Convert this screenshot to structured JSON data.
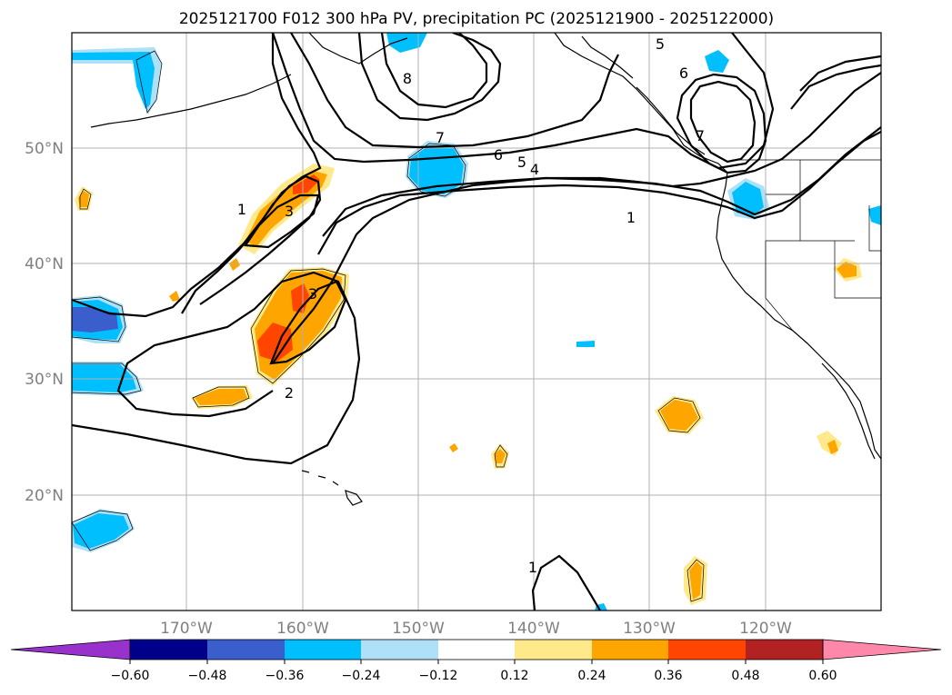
{
  "figure": {
    "title": "2025121700 F012 300 hPa PV, precipitation PC (2025121900 - 2025122000)"
  },
  "map": {
    "lat_labels": [
      "50°N",
      "40°N",
      "30°N",
      "20°N"
    ],
    "lon_labels": [
      "170°W",
      "160°W",
      "150°W",
      "140°W",
      "130°W",
      "120°W"
    ],
    "contour_labels": [
      "8",
      "7",
      "6",
      "5",
      "4",
      "1",
      "6",
      "7",
      "5",
      "3",
      "1",
      "3",
      "2",
      "1"
    ],
    "colors": {
      "pos_light": "#ffe98a",
      "pos_orange": "#ffa500",
      "pos_red": "#ff4500",
      "neg_light": "#aee0f7",
      "neg_blue": "#00bfff",
      "neg_dark": "#3a5fcd"
    }
  },
  "colorbar": {
    "tick_labels": [
      "−0.60",
      "−0.48",
      "−0.36",
      "−0.24",
      "−0.12",
      "0.12",
      "0.24",
      "0.36",
      "0.48",
      "0.60"
    ],
    "colors": [
      "#9932cc",
      "#00008b",
      "#3a5fcd",
      "#00bfff",
      "#aee0f7",
      "#ffffff",
      "#ffe98a",
      "#ffa500",
      "#ff4500",
      "#b22222",
      "#ff88aa"
    ]
  }
}
